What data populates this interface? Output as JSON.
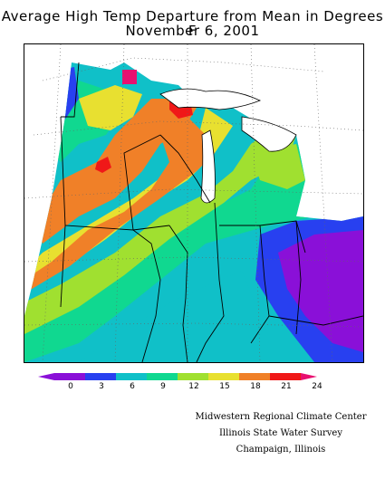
{
  "title": {
    "line1": "Average High Temp Departure from Mean in Degrees F",
    "line2": "November 6, 2001"
  },
  "legend": {
    "ticks": [
      "0",
      "3",
      "6",
      "9",
      "12",
      "15",
      "18",
      "21",
      "24"
    ],
    "colors": [
      "#8a10d8",
      "#2840f0",
      "#10c0c8",
      "#10d890",
      "#a0e030",
      "#e8e030",
      "#f08028",
      "#f01818",
      "#e81070"
    ]
  },
  "credits": {
    "line1": "Midwestern Regional Climate Center",
    "line2": "Illinois State Water Survey",
    "line3": "Champaign, Illinois"
  }
}
